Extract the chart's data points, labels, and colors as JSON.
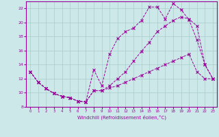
{
  "xlabel": "Windchill (Refroidissement éolien,°C)",
  "ylabel": "",
  "background_color": "#cce8e8",
  "grid_color": "#aacccc",
  "line_color": "#990099",
  "xlim": [
    -0.5,
    23.5
  ],
  "ylim": [
    8,
    23
  ],
  "yticks": [
    8,
    10,
    12,
    14,
    16,
    18,
    20,
    22
  ],
  "xticks": [
    0,
    1,
    2,
    3,
    4,
    5,
    6,
    7,
    8,
    9,
    10,
    11,
    12,
    13,
    14,
    15,
    16,
    17,
    18,
    19,
    20,
    21,
    22,
    23
  ],
  "series1_x": [
    0,
    1,
    2,
    3,
    4,
    5,
    6,
    7,
    8,
    9,
    10,
    11,
    12,
    13,
    14,
    15,
    16,
    17,
    18,
    19,
    20,
    21,
    22,
    23
  ],
  "series1_y": [
    13.0,
    11.5,
    10.6,
    9.9,
    9.5,
    9.3,
    8.8,
    8.7,
    13.3,
    11.0,
    15.5,
    17.7,
    18.7,
    19.2,
    20.3,
    22.2,
    22.2,
    20.5,
    22.7,
    21.8,
    20.4,
    17.5,
    14.0,
    12.0
  ],
  "series2_x": [
    0,
    1,
    2,
    3,
    4,
    5,
    6,
    7,
    8,
    9,
    10,
    11,
    12,
    13,
    14,
    15,
    16,
    17,
    18,
    19,
    20,
    21,
    22,
    23
  ],
  "series2_y": [
    13.0,
    11.5,
    10.6,
    9.9,
    9.5,
    9.3,
    8.8,
    8.7,
    10.3,
    10.3,
    11.0,
    12.0,
    13.0,
    14.5,
    15.9,
    17.2,
    18.7,
    19.5,
    20.3,
    20.8,
    20.5,
    19.5,
    14.0,
    12.0
  ],
  "series3_x": [
    0,
    1,
    2,
    3,
    4,
    5,
    6,
    7,
    8,
    9,
    10,
    11,
    12,
    13,
    14,
    15,
    16,
    17,
    18,
    19,
    20,
    21,
    22,
    23
  ],
  "series3_y": [
    13.0,
    11.5,
    10.6,
    9.9,
    9.5,
    9.3,
    8.8,
    8.7,
    10.3,
    10.3,
    10.7,
    11.0,
    11.5,
    12.0,
    12.5,
    13.0,
    13.5,
    14.0,
    14.5,
    15.0,
    15.5,
    13.0,
    12.0,
    12.0
  ]
}
